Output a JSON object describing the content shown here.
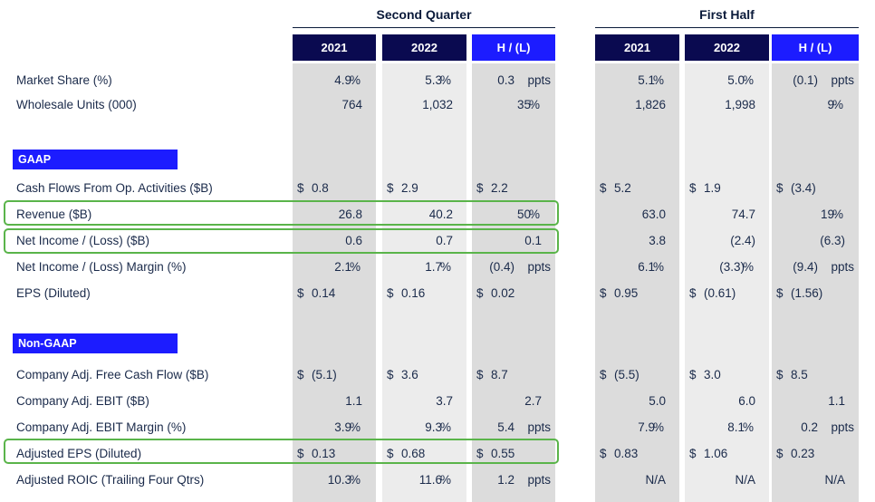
{
  "groups": {
    "second_quarter": "Second Quarter",
    "first_half": "First Half"
  },
  "headers": {
    "q_2021": "2021",
    "q_2022": "2022",
    "q_hl": "H / (L)",
    "h_2021": "2021",
    "h_2022": "2022",
    "h_hl": "H / (L)"
  },
  "sections": {
    "gaap": "GAAP",
    "non_gaap": "Non-GAAP"
  },
  "rows": {
    "market_share": {
      "label": "Market Share (%)",
      "cells": [
        {
          "d": "",
          "n": "4.9",
          "u": "%"
        },
        {
          "d": "",
          "n": "5.3",
          "u": "%"
        },
        {
          "d": "",
          "n": "0.3",
          "u": "ppts"
        },
        {
          "d": "",
          "n": "5.1",
          "u": "%"
        },
        {
          "d": "",
          "n": "5.0",
          "u": "%"
        },
        {
          "d": "",
          "n": "(0.1)",
          "u": "ppts"
        }
      ]
    },
    "wholesale_units": {
      "label": "Wholesale Units (000)",
      "cells": [
        {
          "d": "",
          "n": "764",
          "u": ""
        },
        {
          "d": "",
          "n": "1,032",
          "u": ""
        },
        {
          "d": "",
          "n": "35",
          "u": "%"
        },
        {
          "d": "",
          "n": "1,826",
          "u": ""
        },
        {
          "d": "",
          "n": "1,998",
          "u": ""
        },
        {
          "d": "",
          "n": "9",
          "u": "%"
        }
      ]
    },
    "cash_flows": {
      "label": "Cash Flows From Op. Activities ($B)",
      "cells": [
        {
          "d": "$",
          "n": "0.8",
          "u": ""
        },
        {
          "d": "$",
          "n": "2.9",
          "u": ""
        },
        {
          "d": "$",
          "n": "2.2",
          "u": ""
        },
        {
          "d": "$",
          "n": "5.2",
          "u": ""
        },
        {
          "d": "$",
          "n": "1.9",
          "u": ""
        },
        {
          "d": "$",
          "n": "(3.4)",
          "u": ""
        }
      ]
    },
    "revenue": {
      "label": "Revenue ($B)",
      "cells": [
        {
          "d": "",
          "n": "26.8",
          "u": ""
        },
        {
          "d": "",
          "n": "40.2",
          "u": ""
        },
        {
          "d": "",
          "n": "50",
          "u": "%"
        },
        {
          "d": "",
          "n": "63.0",
          "u": ""
        },
        {
          "d": "",
          "n": "74.7",
          "u": ""
        },
        {
          "d": "",
          "n": "19",
          "u": "%"
        }
      ]
    },
    "net_income": {
      "label": "Net Income / (Loss) ($B)",
      "cells": [
        {
          "d": "",
          "n": "0.6",
          "u": ""
        },
        {
          "d": "",
          "n": "0.7",
          "u": ""
        },
        {
          "d": "",
          "n": "0.1",
          "u": ""
        },
        {
          "d": "",
          "n": "3.8",
          "u": ""
        },
        {
          "d": "",
          "n": "(2.4)",
          "u": ""
        },
        {
          "d": "",
          "n": "(6.3)",
          "u": ""
        }
      ]
    },
    "net_income_margin": {
      "label": "Net Income / (Loss) Margin (%)",
      "cells": [
        {
          "d": "",
          "n": "2.1",
          "u": "%"
        },
        {
          "d": "",
          "n": "1.7",
          "u": "%"
        },
        {
          "d": "",
          "n": "(0.4)",
          "u": "ppts"
        },
        {
          "d": "",
          "n": "6.1",
          "u": "%"
        },
        {
          "d": "",
          "n": "(3.3)",
          "u": "%"
        },
        {
          "d": "",
          "n": "(9.4)",
          "u": "ppts"
        }
      ]
    },
    "eps": {
      "label": "EPS (Diluted)",
      "cells": [
        {
          "d": "$",
          "n": "0.14",
          "u": ""
        },
        {
          "d": "$",
          "n": "0.16",
          "u": ""
        },
        {
          "d": "$",
          "n": "0.02",
          "u": ""
        },
        {
          "d": "$",
          "n": "0.95",
          "u": ""
        },
        {
          "d": "$",
          "n": "(0.61)",
          "u": ""
        },
        {
          "d": "$",
          "n": "(1.56)",
          "u": ""
        }
      ]
    },
    "adj_fcf": {
      "label": "Company Adj. Free Cash Flow ($B)",
      "cells": [
        {
          "d": "$",
          "n": "(5.1)",
          "u": ""
        },
        {
          "d": "$",
          "n": "3.6",
          "u": ""
        },
        {
          "d": "$",
          "n": "8.7",
          "u": ""
        },
        {
          "d": "$",
          "n": "(5.5)",
          "u": ""
        },
        {
          "d": "$",
          "n": "3.0",
          "u": ""
        },
        {
          "d": "$",
          "n": "8.5",
          "u": ""
        }
      ]
    },
    "adj_ebit": {
      "label": "Company Adj. EBIT ($B)",
      "cells": [
        {
          "d": "",
          "n": "1.1",
          "u": ""
        },
        {
          "d": "",
          "n": "3.7",
          "u": ""
        },
        {
          "d": "",
          "n": "2.7",
          "u": ""
        },
        {
          "d": "",
          "n": "5.0",
          "u": ""
        },
        {
          "d": "",
          "n": "6.0",
          "u": ""
        },
        {
          "d": "",
          "n": "1.1",
          "u": ""
        }
      ]
    },
    "adj_ebit_margin": {
      "label": "Company Adj. EBIT Margin (%)",
      "cells": [
        {
          "d": "",
          "n": "3.9",
          "u": "%"
        },
        {
          "d": "",
          "n": "9.3",
          "u": "%"
        },
        {
          "d": "",
          "n": "5.4",
          "u": "ppts"
        },
        {
          "d": "",
          "n": "7.9",
          "u": "%"
        },
        {
          "d": "",
          "n": "8.1",
          "u": "%"
        },
        {
          "d": "",
          "n": "0.2",
          "u": "ppts"
        }
      ]
    },
    "adj_eps": {
      "label": "Adjusted EPS (Diluted)",
      "cells": [
        {
          "d": "$",
          "n": "0.13",
          "u": ""
        },
        {
          "d": "$",
          "n": "0.68",
          "u": ""
        },
        {
          "d": "$",
          "n": "0.55",
          "u": ""
        },
        {
          "d": "$",
          "n": "0.83",
          "u": ""
        },
        {
          "d": "$",
          "n": "1.06",
          "u": ""
        },
        {
          "d": "$",
          "n": "0.23",
          "u": ""
        }
      ]
    },
    "adj_roic": {
      "label": "Adjusted ROIC (Trailing Four Qtrs)",
      "cells": [
        {
          "d": "",
          "n": "10.3",
          "u": "%"
        },
        {
          "d": "",
          "n": "11.6",
          "u": "%"
        },
        {
          "d": "",
          "n": "1.2",
          "u": "ppts"
        },
        {
          "d": "",
          "n": "N/A",
          "u": ""
        },
        {
          "d": "",
          "n": "N/A",
          "u": ""
        },
        {
          "d": "",
          "n": "N/A",
          "u": ""
        }
      ]
    }
  },
  "colors": {
    "dark_header": "#0a0a50",
    "blue_header": "#1c1cff",
    "highlight": "#5ab44a"
  }
}
